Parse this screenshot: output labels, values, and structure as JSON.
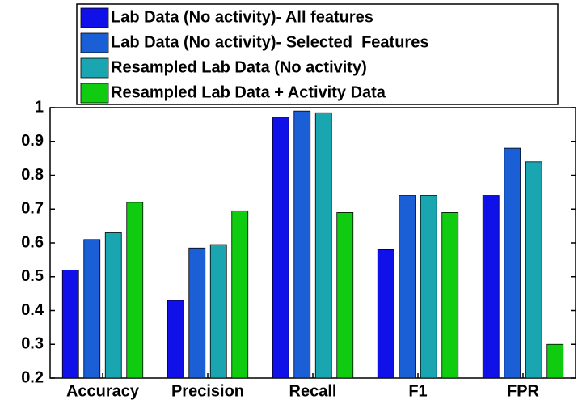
{
  "chart_data": {
    "type": "bar",
    "categories": [
      "Accuracy",
      "Precision",
      "Recall",
      "F1",
      "FPR"
    ],
    "series": [
      {
        "name": "Lab Data (No activity)- All features",
        "color": "#1010e8",
        "values": [
          0.52,
          0.43,
          0.97,
          0.58,
          0.74
        ]
      },
      {
        "name": "Lab Data (No activity)- Selected  Features",
        "color": "#1a5fd6",
        "values": [
          0.61,
          0.585,
          0.99,
          0.74,
          0.88
        ]
      },
      {
        "name": "Resampled Lab Data (No activity)",
        "color": "#1aa6b0",
        "values": [
          0.63,
          0.595,
          0.985,
          0.74,
          0.84
        ]
      },
      {
        "name": "Resampled Lab Data + Activity Data",
        "color": "#10cc10",
        "values": [
          0.72,
          0.695,
          0.69,
          0.69,
          0.3
        ]
      }
    ],
    "ylim": [
      0.2,
      1
    ],
    "yticks": [
      0.2,
      0.3,
      0.4,
      0.5,
      0.6,
      0.7,
      0.8,
      0.9,
      1
    ],
    "grid": false,
    "legend": "upper left"
  }
}
